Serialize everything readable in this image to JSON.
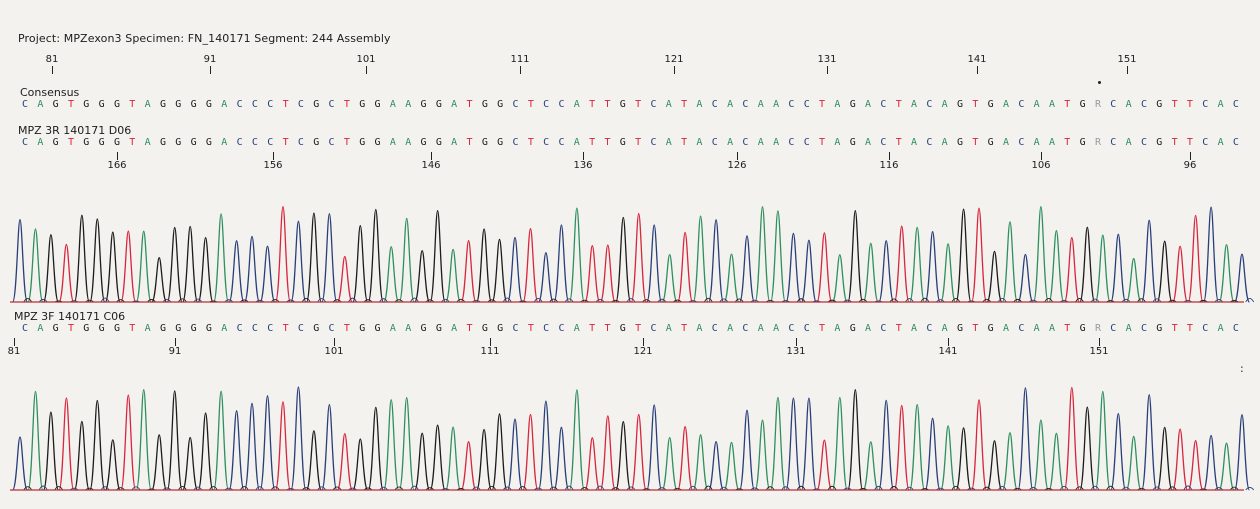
{
  "header": {
    "title": "Project: MPZexon3  Specimen: FN_140171  Segment: 244  Assembly"
  },
  "colors": {
    "A": "#2f8f5e",
    "C": "#2a3f7a",
    "G": "#1c1c1c",
    "T": "#d7263d",
    "R": "#9a9a9a"
  },
  "sequence": "CAGTGGGTAGGGGACCCTCGCTGGAAGGATGGCTCCATTGTCATACACAACCTAGACTACAGTGACAATGRCACGTTCAC",
  "consensus": {
    "label": "Consensus",
    "ticks": [
      "81",
      "91",
      "101",
      "111",
      "121",
      "131",
      "141",
      "151"
    ]
  },
  "read_reverse": {
    "label": "MPZ 3R 140171 D06",
    "ticks": [
      "166",
      "156",
      "146",
      "136",
      "126",
      "116",
      "106",
      "96"
    ]
  },
  "read_forward": {
    "label": "MPZ 3F 140171 C06",
    "ticks": [
      "81",
      "91",
      "101",
      "111",
      "121",
      "131",
      "141",
      "151"
    ]
  },
  "trailing_mark": ":"
}
